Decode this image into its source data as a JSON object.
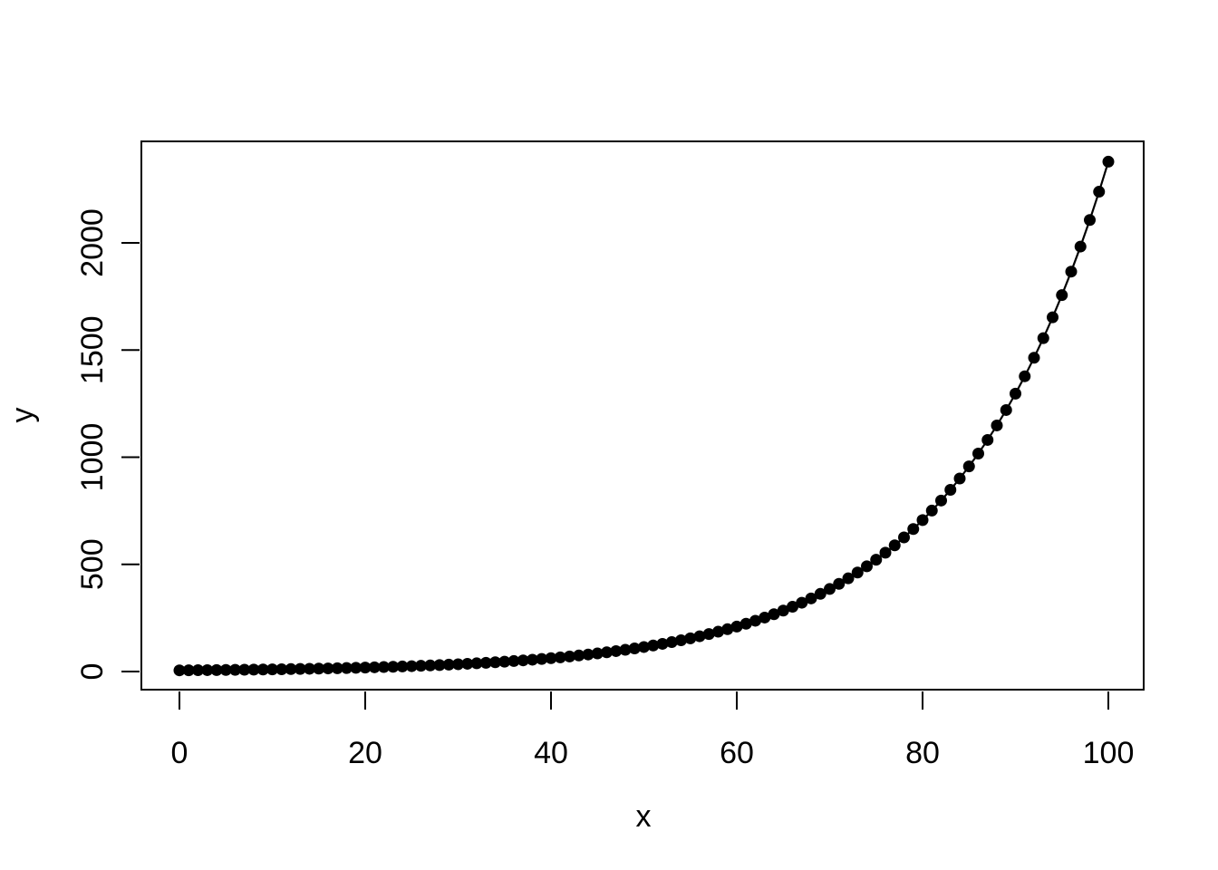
{
  "figure": {
    "background_color": "#ffffff",
    "foreground_color": "#000000"
  },
  "chart_data": {
    "type": "line",
    "style": "r-base-plot",
    "points_shown": true,
    "marker": "filled-circle",
    "line_shown": true,
    "grid": false,
    "legend": null,
    "title": "",
    "xlabel": "x",
    "ylabel": "y",
    "x_ticks": [
      0,
      20,
      40,
      60,
      80,
      100
    ],
    "y_ticks": [
      0,
      500,
      1000,
      1500,
      2000
    ],
    "xlim": [
      0,
      100
    ],
    "ylim": [
      0,
      2400
    ],
    "x": [
      0,
      1,
      2,
      3,
      4,
      5,
      6,
      7,
      8,
      9,
      10,
      11,
      12,
      13,
      14,
      15,
      16,
      17,
      18,
      19,
      20,
      21,
      22,
      23,
      24,
      25,
      26,
      27,
      28,
      29,
      30,
      31,
      32,
      33,
      34,
      35,
      36,
      37,
      38,
      39,
      40,
      41,
      42,
      43,
      44,
      45,
      46,
      47,
      48,
      49,
      50,
      51,
      52,
      53,
      54,
      55,
      56,
      57,
      58,
      59,
      60,
      61,
      62,
      63,
      64,
      65,
      66,
      67,
      68,
      69,
      70,
      71,
      72,
      73,
      74,
      75,
      76,
      77,
      78,
      79,
      80,
      81,
      82,
      83,
      84,
      85,
      86,
      87,
      88,
      89,
      90,
      91,
      92,
      93,
      94,
      95,
      96,
      97,
      98,
      99,
      100
    ],
    "y": [
      5.5,
      5.8,
      6.2,
      6.6,
      7.0,
      7.5,
      7.9,
      8.4,
      8.9,
      9.5,
      10.1,
      10.7,
      11.4,
      12.1,
      12.9,
      13.7,
      14.5,
      15.4,
      16.4,
      17.4,
      18.5,
      19.7,
      20.9,
      22.2,
      23.6,
      25.1,
      26.7,
      28.3,
      30.1,
      32.0,
      34.0,
      36.1,
      38.4,
      40.8,
      43.3,
      46.0,
      48.9,
      52.0,
      55.2,
      58.7,
      62.3,
      66.2,
      70.4,
      74.8,
      79.5,
      84.4,
      89.7,
      95.3,
      101.3,
      107.7,
      114.4,
      121.5,
      129.2,
      137.2,
      145.8,
      154.9,
      164.6,
      174.9,
      185.9,
      197.5,
      209.9,
      223.0,
      237.0,
      251.8,
      267.5,
      284.3,
      302.1,
      321.0,
      341.1,
      362.4,
      385.1,
      409.2,
      434.8,
      462.0,
      490.9,
      521.6,
      554.3,
      588.9,
      625.8,
      665.0,
      706.6,
      750.8,
      797.8,
      847.7,
      900.7,
      957.1,
      1017.0,
      1080.6,
      1148.2,
      1220.1,
      1296.5,
      1377.6,
      1463.8,
      1555.4,
      1652.7,
      1756.1,
      1866.0,
      1982.8,
      2106.9,
      2238.7,
      2378.8
    ]
  }
}
